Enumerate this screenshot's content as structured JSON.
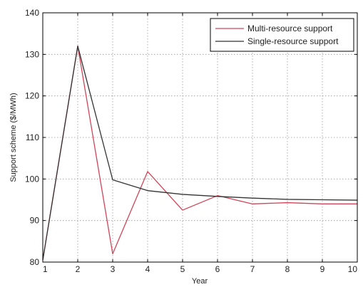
{
  "chart_data": {
    "type": "line",
    "title": "",
    "xlabel": "Year",
    "ylabel": "Support scheme  ($/MWh)",
    "x": [
      1,
      2,
      3,
      4,
      5,
      6,
      7,
      8,
      9,
      10
    ],
    "xlim": [
      1,
      10
    ],
    "ylim": [
      80,
      140
    ],
    "xticks": [
      "1",
      "2",
      "3",
      "4",
      "5",
      "6",
      "7",
      "8",
      "9",
      "10"
    ],
    "yticks": [
      "80",
      "90",
      "100",
      "110",
      "120",
      "130",
      "140"
    ],
    "grid": true,
    "legend_position": "top-right",
    "series": [
      {
        "name": "Multi-resource support",
        "color": "#d0455a",
        "values": [
          80.5,
          132,
          82,
          101.8,
          92.5,
          96,
          94,
          94.3,
          94,
          94
        ]
      },
      {
        "name": "Single-resource support",
        "color": "#333333",
        "values": [
          80.5,
          132,
          99.8,
          97.2,
          96.3,
          95.8,
          95.4,
          95.1,
          95,
          94.9
        ]
      }
    ]
  }
}
